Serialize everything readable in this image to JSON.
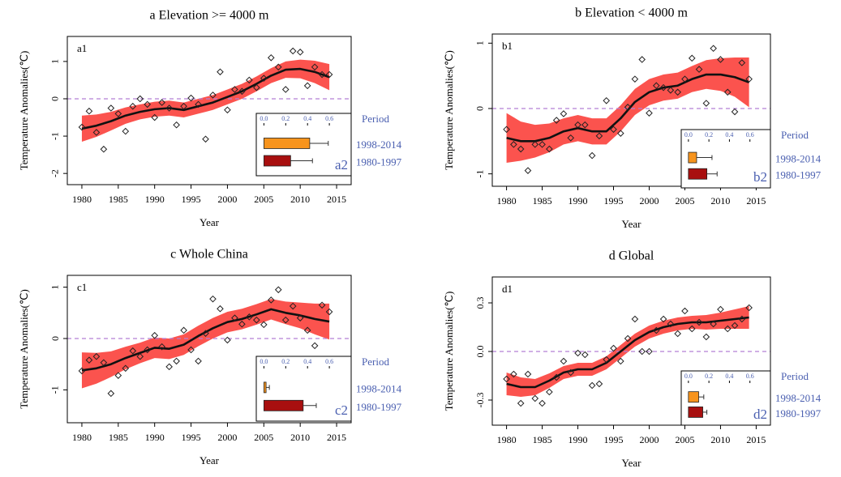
{
  "chart_data": [
    {
      "type": "scatter",
      "title": "a  Elevation >= 4000 m",
      "panel_label": "a1",
      "x_label": "Year",
      "y_label": "Temperature Anomalies(℃)",
      "x": [
        1980,
        1981,
        1982,
        1983,
        1984,
        1985,
        1986,
        1987,
        1988,
        1989,
        1990,
        1991,
        1992,
        1993,
        1994,
        1995,
        1996,
        1997,
        1998,
        1999,
        2000,
        2001,
        2002,
        2003,
        2004,
        2005,
        2006,
        2007,
        2008,
        2009,
        2010,
        2011,
        2012,
        2013,
        2014
      ],
      "values": [
        -0.76,
        -0.33,
        -0.9,
        -1.35,
        -0.25,
        -0.4,
        -0.87,
        -0.2,
        0,
        -0.15,
        -0.5,
        -0.1,
        -0.25,
        -0.7,
        -0.2,
        0.02,
        -0.15,
        -1.08,
        0.1,
        0.72,
        -0.3,
        0.25,
        0.2,
        0.5,
        0.3,
        0.55,
        1.1,
        0.85,
        0.25,
        1.28,
        1.25,
        0.35,
        0.85,
        0.65,
        0.65
      ],
      "fit": {
        "x": [
          1980,
          1982,
          1984,
          1986,
          1988,
          1990,
          1992,
          1994,
          1996,
          1998,
          2000,
          2002,
          2004,
          2006,
          2008,
          2010,
          2012,
          2014
        ],
        "values": [
          -0.8,
          -0.72,
          -0.6,
          -0.45,
          -0.35,
          -0.28,
          -0.25,
          -0.3,
          -0.2,
          -0.1,
          0.05,
          0.2,
          0.4,
          0.62,
          0.78,
          0.8,
          0.72,
          0.58
        ],
        "upper": [
          -0.45,
          -0.42,
          -0.35,
          -0.23,
          -0.15,
          -0.08,
          -0.05,
          -0.1,
          0,
          0.1,
          0.25,
          0.4,
          0.6,
          0.82,
          1.0,
          1.05,
          1.02,
          0.93
        ],
        "lower": [
          -1.15,
          -1.02,
          -0.85,
          -0.67,
          -0.55,
          -0.48,
          -0.45,
          -0.5,
          -0.4,
          -0.3,
          -0.15,
          0,
          0.2,
          0.42,
          0.56,
          0.55,
          0.42,
          0.23
        ]
      },
      "reference_line": 0,
      "xlim": [
        1978,
        2017
      ],
      "ylim": [
        -2.3,
        1.67
      ],
      "xticks": [
        1980,
        1985,
        1990,
        1995,
        2000,
        2005,
        2010,
        2015
      ],
      "yticks": [
        -2,
        -1,
        0,
        1
      ],
      "inset": {
        "type": "bar",
        "label": "a2",
        "legend_title": "Period",
        "categories": [
          "1998-2014",
          "1980-1997"
        ],
        "values": [
          0.42,
          0.245
        ],
        "errors": [
          0.17,
          0.2
        ],
        "colors": [
          "#f7941d",
          "#a80f0f"
        ],
        "xlim": [
          -0.07,
          0.8
        ],
        "xticks": [
          {
            "value": 0,
            "label": "0.0"
          },
          0.2,
          0.4,
          0.6
        ]
      }
    },
    {
      "type": "scatter",
      "title": "b  Elevation < 4000 m",
      "panel_label": "b1",
      "x_label": "Year",
      "y_label": "Temperature Anomalies(℃)",
      "x": [
        1980,
        1981,
        1982,
        1983,
        1984,
        1985,
        1986,
        1987,
        1988,
        1989,
        1990,
        1991,
        1992,
        1993,
        1994,
        1995,
        1996,
        1997,
        1998,
        1999,
        2000,
        2001,
        2002,
        2003,
        2004,
        2005,
        2006,
        2007,
        2008,
        2009,
        2010,
        2011,
        2012,
        2013,
        2014
      ],
      "values": [
        -0.32,
        -0.55,
        -0.62,
        -0.95,
        -0.55,
        -0.55,
        -0.62,
        -0.18,
        -0.08,
        -0.45,
        -0.25,
        -0.25,
        -0.72,
        -0.42,
        0.12,
        -0.32,
        -0.38,
        0.02,
        0.45,
        0.75,
        -0.07,
        0.35,
        0.32,
        0.28,
        0.25,
        0.45,
        0.77,
        0.6,
        0.08,
        0.92,
        0.75,
        0.25,
        -0.05,
        0.7,
        0.45
      ],
      "fit": {
        "x": [
          1980,
          1982,
          1984,
          1986,
          1988,
          1990,
          1992,
          1994,
          1996,
          1998,
          2000,
          2002,
          2004,
          2006,
          2008,
          2010,
          2012,
          2014
        ],
        "values": [
          -0.45,
          -0.5,
          -0.5,
          -0.45,
          -0.35,
          -0.3,
          -0.35,
          -0.35,
          -0.15,
          0.1,
          0.25,
          0.32,
          0.35,
          0.45,
          0.52,
          0.52,
          0.48,
          0.4
        ],
        "upper": [
          -0.07,
          -0.2,
          -0.25,
          -0.23,
          -0.15,
          -0.1,
          -0.15,
          -0.15,
          0.05,
          0.3,
          0.45,
          0.52,
          0.55,
          0.65,
          0.74,
          0.77,
          0.78,
          0.78
        ],
        "lower": [
          -0.83,
          -0.8,
          -0.75,
          -0.67,
          -0.55,
          -0.5,
          -0.55,
          -0.55,
          -0.35,
          -0.1,
          0.05,
          0.12,
          0.15,
          0.25,
          0.3,
          0.27,
          0.18,
          0.02
        ]
      },
      "reference_line": 0,
      "xlim": [
        1978,
        2017
      ],
      "ylim": [
        -1.19,
        1.14
      ],
      "xticks": [
        1980,
        1985,
        1990,
        1995,
        2000,
        2005,
        2010,
        2015
      ],
      "yticks": [
        -1,
        0,
        1
      ],
      "inset": {
        "type": "bar",
        "label": "b2",
        "legend_title": "Period",
        "categories": [
          "1998-2014",
          "1980-1997"
        ],
        "values": [
          0.08,
          0.18
        ],
        "errors": [
          0.15,
          0.1
        ],
        "colors": [
          "#f7941d",
          "#a80f0f"
        ],
        "xlim": [
          -0.07,
          0.8
        ],
        "xticks": [
          {
            "value": 0,
            "label": "0.0"
          },
          0.2,
          0.4,
          0.6
        ]
      }
    },
    {
      "type": "scatter",
      "title": "c  Whole China",
      "panel_label": "c1",
      "x_label": "Year",
      "y_label": "Temperature Anomalies(℃)",
      "x": [
        1980,
        1981,
        1982,
        1983,
        1984,
        1985,
        1986,
        1987,
        1988,
        1989,
        1990,
        1991,
        1992,
        1993,
        1994,
        1995,
        1996,
        1997,
        1998,
        1999,
        2000,
        2001,
        2002,
        2003,
        2004,
        2005,
        2006,
        2007,
        2008,
        2009,
        2010,
        2011,
        2012,
        2013,
        2014
      ],
      "values": [
        -0.63,
        -0.42,
        -0.35,
        -0.47,
        -1.07,
        -0.72,
        -0.58,
        -0.24,
        -0.35,
        -0.22,
        0.06,
        -0.16,
        -0.55,
        -0.44,
        0.16,
        -0.22,
        -0.44,
        0.1,
        0.77,
        0.58,
        -0.03,
        0.4,
        0.28,
        0.42,
        0.36,
        0.27,
        0.75,
        0.95,
        0.36,
        0.63,
        0.4,
        0.16,
        -0.14,
        0.65,
        0.52
      ],
      "fit": {
        "x": [
          1980,
          1982,
          1984,
          1986,
          1988,
          1990,
          1992,
          1994,
          1996,
          1998,
          2000,
          2002,
          2004,
          2006,
          2008,
          2010,
          2012,
          2014
        ],
        "values": [
          -0.62,
          -0.58,
          -0.5,
          -0.38,
          -0.28,
          -0.18,
          -0.2,
          -0.12,
          0.05,
          0.2,
          0.32,
          0.38,
          0.47,
          0.57,
          0.5,
          0.45,
          0.38,
          0.33
        ],
        "upper": [
          -0.27,
          -0.28,
          -0.25,
          -0.16,
          -0.08,
          0.02,
          0,
          0.08,
          0.25,
          0.4,
          0.52,
          0.58,
          0.67,
          0.77,
          0.72,
          0.7,
          0.68,
          0.68
        ],
        "lower": [
          -0.97,
          -0.88,
          -0.75,
          -0.6,
          -0.48,
          -0.38,
          -0.4,
          -0.32,
          -0.15,
          0,
          0.12,
          0.18,
          0.27,
          0.37,
          0.28,
          0.2,
          0.08,
          -0.02
        ]
      },
      "reference_line": 0,
      "xlim": [
        1978,
        2017
      ],
      "ylim": [
        -1.64,
        1.23
      ],
      "xticks": [
        1980,
        1985,
        1990,
        1995,
        2000,
        2005,
        2010,
        2015
      ],
      "yticks": [
        -1,
        0,
        1
      ],
      "inset": {
        "type": "bar",
        "label": "c2",
        "legend_title": "Period",
        "categories": [
          "1998-2014",
          "1980-1997"
        ],
        "values": [
          0.02,
          0.36
        ],
        "errors": [
          0.03,
          0.12
        ],
        "colors": [
          "#f7941d",
          "#a80f0f"
        ],
        "xlim": [
          -0.07,
          0.8
        ],
        "xticks": [
          {
            "value": 0,
            "label": "0.0"
          },
          0.2,
          0.4,
          0.6
        ]
      }
    },
    {
      "type": "scatter",
      "title": "d  Global",
      "panel_label": "d1",
      "x_label": "Year",
      "y_label": "Temperature Anomalies(℃)",
      "x": [
        1980,
        1981,
        1982,
        1983,
        1984,
        1985,
        1986,
        1987,
        1988,
        1989,
        1990,
        1991,
        1992,
        1993,
        1994,
        1995,
        1996,
        1997,
        1998,
        1999,
        2000,
        2001,
        2002,
        2003,
        2004,
        2005,
        2006,
        2007,
        2008,
        2009,
        2010,
        2011,
        2012,
        2013,
        2014
      ],
      "values": [
        -0.17,
        -0.14,
        -0.32,
        -0.14,
        -0.29,
        -0.32,
        -0.25,
        -0.16,
        -0.06,
        -0.13,
        -0.01,
        -0.02,
        -0.21,
        -0.2,
        -0.05,
        0.02,
        -0.06,
        0.08,
        0.2,
        0,
        0,
        0.13,
        0.2,
        0.17,
        0.11,
        0.25,
        0.14,
        0.18,
        0.09,
        0.17,
        0.26,
        0.14,
        0.16,
        0.2,
        0.27
      ],
      "fit": {
        "x": [
          1980,
          1982,
          1984,
          1986,
          1988,
          1990,
          1992,
          1994,
          1996,
          1998,
          2000,
          2002,
          2004,
          2006,
          2008,
          2010,
          2012,
          2014
        ],
        "values": [
          -0.2,
          -0.22,
          -0.22,
          -0.18,
          -0.13,
          -0.11,
          -0.11,
          -0.07,
          0,
          0.07,
          0.12,
          0.15,
          0.17,
          0.18,
          0.18,
          0.19,
          0.2,
          0.21
        ],
        "upper": [
          -0.13,
          -0.16,
          -0.17,
          -0.135,
          -0.09,
          -0.07,
          -0.07,
          -0.03,
          0.04,
          0.11,
          0.16,
          0.19,
          0.21,
          0.22,
          0.225,
          0.24,
          0.26,
          0.28
        ],
        "lower": [
          -0.27,
          -0.28,
          -0.27,
          -0.225,
          -0.17,
          -0.15,
          -0.15,
          -0.11,
          -0.04,
          0.03,
          0.08,
          0.11,
          0.13,
          0.14,
          0.135,
          0.14,
          0.14,
          0.14
        ]
      },
      "reference_line": 0,
      "xlim": [
        1978,
        2017
      ],
      "ylim": [
        -0.455,
        0.46
      ],
      "xticks": [
        1980,
        1985,
        1990,
        1995,
        2000,
        2005,
        2010,
        2015
      ],
      "yticks": [
        -0.3,
        {
          "value": 0,
          "label": "0.0"
        },
        0.3
      ],
      "inset": {
        "type": "bar",
        "label": "d2",
        "legend_title": "Period",
        "categories": [
          "1998-2014",
          "1980-1997"
        ],
        "values": [
          0.1,
          0.14
        ],
        "errors": [
          0.05,
          0.04
        ],
        "colors": [
          "#f7941d",
          "#a80f0f"
        ],
        "xlim": [
          -0.07,
          0.8
        ],
        "xticks": [
          {
            "value": 0,
            "label": "0.0"
          },
          0.2,
          0.4,
          0.6
        ]
      }
    }
  ]
}
